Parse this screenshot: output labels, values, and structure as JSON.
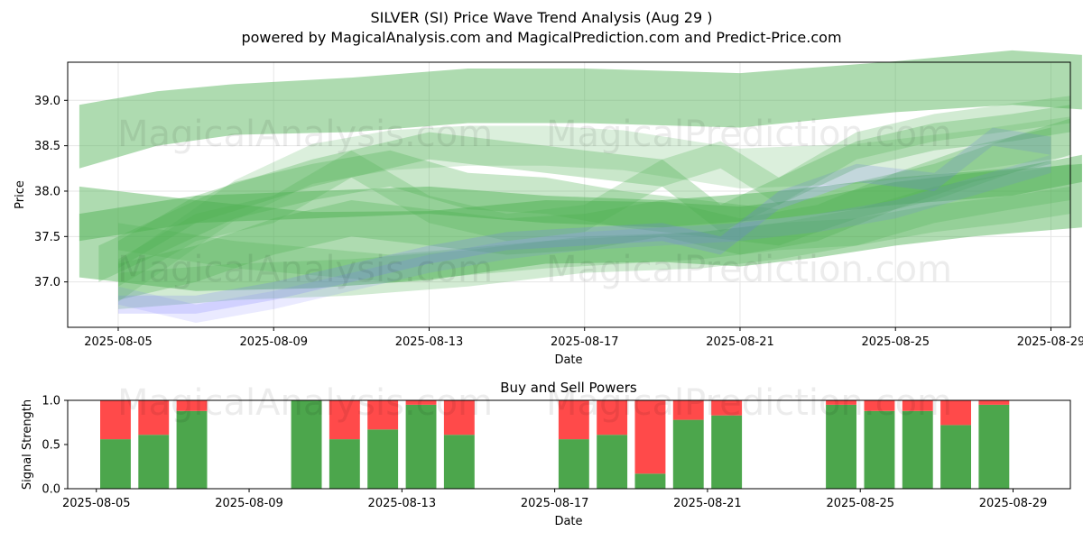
{
  "title_line1": "SILVER (SI) Price Wave Trend Analysis (Aug 29 )",
  "title_line2": "powered by MagicalAnalysis.com and MagicalPrediction.com and Predict-Price.com",
  "watermarks": [
    "MagicalAnalysis.com",
    "MagicalPrediction.com"
  ],
  "colors": {
    "green_band": "#4CAF50",
    "blue_band": "#6f6fff",
    "buy": "#4CA64C",
    "sell": "#FF4A4A",
    "grid": "#e6e6e6"
  },
  "chart_data": [
    {
      "type": "area",
      "title": "",
      "xlabel": "Date",
      "ylabel": "Price",
      "x_start": "2025-08-04",
      "xlim": [
        -0.3,
        25.5
      ],
      "ylim": [
        36.5,
        39.42
      ],
      "x_ticks": [
        {
          "day": 1,
          "label": "2025-08-05"
        },
        {
          "day": 5,
          "label": "2025-08-09"
        },
        {
          "day": 9,
          "label": "2025-08-13"
        },
        {
          "day": 13,
          "label": "2025-08-17"
        },
        {
          "day": 17,
          "label": "2025-08-21"
        },
        {
          "day": 21,
          "label": "2025-08-25"
        },
        {
          "day": 25,
          "label": "2025-08-29"
        }
      ],
      "y_ticks": [
        {
          "value": 37.0,
          "label": "37.0"
        },
        {
          "value": 37.5,
          "label": "37.5"
        },
        {
          "value": 38.0,
          "label": "38.0"
        },
        {
          "value": 38.5,
          "label": "38.5"
        },
        {
          "value": 39.0,
          "label": "39.0"
        }
      ],
      "grid": true,
      "bands": [
        {
          "color": "green",
          "opacity": 0.45,
          "x": [
            0,
            2,
            4,
            7,
            10,
            13,
            17,
            21,
            24,
            25.8
          ],
          "center": [
            38.6,
            38.8,
            38.9,
            38.95,
            39.05,
            39.05,
            39.0,
            39.15,
            39.25,
            39.2
          ],
          "half_width": [
            0.35,
            0.3,
            0.28,
            0.3,
            0.3,
            0.3,
            0.3,
            0.28,
            0.3,
            0.3
          ]
        },
        {
          "color": "green",
          "opacity": 0.45,
          "x": [
            0,
            3,
            6,
            9,
            12,
            15,
            17,
            19,
            21,
            23,
            25.8
          ],
          "center": [
            37.55,
            37.4,
            37.35,
            37.4,
            37.55,
            37.55,
            37.5,
            37.6,
            37.75,
            37.85,
            37.95
          ],
          "half_width": [
            0.5,
            0.5,
            0.42,
            0.38,
            0.35,
            0.33,
            0.33,
            0.33,
            0.35,
            0.35,
            0.35
          ]
        },
        {
          "color": "green",
          "opacity": 0.45,
          "x": [
            0,
            3,
            6,
            9,
            12,
            15,
            18,
            21,
            24,
            25.8
          ],
          "center": [
            37.6,
            37.8,
            37.85,
            37.9,
            37.8,
            37.75,
            37.85,
            38.0,
            38.1,
            38.25
          ],
          "half_width": [
            0.15,
            0.15,
            0.15,
            0.15,
            0.15,
            0.15,
            0.15,
            0.15,
            0.15,
            0.15
          ]
        },
        {
          "color": "green",
          "opacity": 0.3,
          "x": [
            0.5,
            2,
            4,
            6,
            8,
            10,
            12,
            14,
            16,
            18,
            20,
            22,
            24,
            25.5
          ],
          "center": [
            37.2,
            37.5,
            37.9,
            38.1,
            38.25,
            38.0,
            37.95,
            37.8,
            37.7,
            37.6,
            37.9,
            38.1,
            38.4,
            38.6
          ],
          "half_width": [
            0.2,
            0.2,
            0.2,
            0.2,
            0.2,
            0.2,
            0.2,
            0.2,
            0.2,
            0.2,
            0.2,
            0.2,
            0.2,
            0.2
          ]
        },
        {
          "color": "green",
          "opacity": 0.3,
          "x": [
            1,
            3,
            5,
            7,
            9,
            11,
            13,
            15,
            17,
            19,
            21,
            23,
            25
          ],
          "center": [
            37.0,
            37.2,
            37.5,
            37.7,
            37.6,
            37.5,
            37.55,
            37.7,
            37.5,
            37.65,
            38.0,
            38.3,
            38.5
          ],
          "half_width": [
            0.2,
            0.2,
            0.2,
            0.2,
            0.2,
            0.2,
            0.2,
            0.2,
            0.2,
            0.2,
            0.2,
            0.2,
            0.2
          ]
        },
        {
          "color": "green",
          "opacity": 0.3,
          "x": [
            1,
            3,
            6,
            9,
            11,
            13,
            15,
            16.5,
            18,
            20,
            22,
            24,
            25.5
          ],
          "center": [
            37.3,
            37.8,
            38.2,
            38.5,
            38.4,
            38.3,
            38.2,
            37.7,
            38.0,
            38.4,
            38.6,
            38.7,
            38.8
          ],
          "half_width": [
            0.15,
            0.15,
            0.15,
            0.15,
            0.15,
            0.15,
            0.15,
            0.15,
            0.15,
            0.15,
            0.15,
            0.15,
            0.15
          ]
        },
        {
          "color": "green",
          "opacity": 0.25,
          "x": [
            1,
            4,
            7,
            10,
            13,
            16,
            18,
            20,
            22,
            24,
            25.5
          ],
          "center": [
            36.9,
            37.0,
            37.05,
            37.15,
            37.3,
            37.35,
            37.45,
            37.6,
            37.85,
            38.0,
            38.1
          ],
          "half_width": [
            0.2,
            0.2,
            0.2,
            0.2,
            0.2,
            0.2,
            0.2,
            0.2,
            0.2,
            0.2,
            0.2
          ]
        },
        {
          "color": "green",
          "opacity": 0.25,
          "x": [
            1,
            3,
            5,
            7,
            9,
            11,
            13,
            15,
            16.5,
            18,
            20,
            22,
            25.5
          ],
          "center": [
            37.1,
            37.6,
            37.8,
            38.3,
            37.8,
            37.6,
            37.7,
            38.2,
            38.4,
            38.0,
            38.5,
            38.7,
            38.9
          ],
          "half_width": [
            0.15,
            0.15,
            0.15,
            0.15,
            0.15,
            0.15,
            0.15,
            0.15,
            0.15,
            0.15,
            0.15,
            0.15,
            0.15
          ]
        },
        {
          "color": "green",
          "opacity": 0.25,
          "x": [
            1,
            4,
            8,
            12,
            16,
            18,
            20,
            22,
            24,
            25.5
          ],
          "center": [
            37.5,
            37.3,
            37.15,
            37.3,
            37.4,
            37.5,
            37.55,
            37.7,
            37.8,
            37.9
          ],
          "half_width": [
            0.15,
            0.15,
            0.15,
            0.15,
            0.15,
            0.15,
            0.15,
            0.15,
            0.15,
            0.15
          ]
        },
        {
          "color": "blue",
          "opacity": 0.2,
          "x": [
            1,
            3,
            5,
            7,
            9,
            11,
            13,
            15,
            16.5,
            18,
            20,
            22,
            23.5,
            25
          ],
          "center": [
            36.75,
            36.75,
            36.9,
            37.1,
            37.3,
            37.45,
            37.5,
            37.55,
            37.4,
            37.9,
            38.2,
            38.1,
            38.6,
            38.5
          ],
          "half_width": [
            0.1,
            0.1,
            0.1,
            0.1,
            0.1,
            0.1,
            0.1,
            0.1,
            0.1,
            0.1,
            0.1,
            0.1,
            0.1,
            0.1
          ]
        },
        {
          "color": "blue",
          "opacity": 0.15,
          "x": [
            1,
            3,
            5,
            7,
            9,
            11,
            13,
            15,
            17,
            19,
            21,
            23,
            25
          ],
          "center": [
            36.85,
            36.65,
            36.8,
            37.0,
            37.2,
            37.35,
            37.45,
            37.5,
            37.55,
            37.65,
            37.8,
            38.05,
            38.3
          ],
          "half_width": [
            0.1,
            0.1,
            0.1,
            0.1,
            0.1,
            0.1,
            0.1,
            0.1,
            0.1,
            0.1,
            0.1,
            0.1,
            0.1
          ]
        },
        {
          "color": "green",
          "opacity": 0.2,
          "x": [
            1,
            2.5,
            4,
            6,
            8,
            10,
            12,
            14,
            17,
            20,
            23,
            25.5
          ],
          "center": [
            37.0,
            37.45,
            37.9,
            38.3,
            38.45,
            38.5,
            38.5,
            38.45,
            38.25,
            38.3,
            38.45,
            38.6
          ],
          "half_width": [
            0.22,
            0.22,
            0.22,
            0.22,
            0.22,
            0.22,
            0.22,
            0.22,
            0.22,
            0.22,
            0.22,
            0.22
          ]
        }
      ]
    },
    {
      "type": "bar",
      "title": "Buy and Sell Powers",
      "xlabel": "Date",
      "ylabel": "Signal Strength",
      "ylim": [
        0,
        1.0
      ],
      "y_ticks": [
        {
          "value": 0.0,
          "label": "0.0"
        },
        {
          "value": 0.5,
          "label": "0.5"
        },
        {
          "value": 1.0,
          "label": "1.0"
        }
      ],
      "x_ticks": [
        {
          "day": 0,
          "label": "2025-08-05"
        },
        {
          "day": 4,
          "label": "2025-08-09"
        },
        {
          "day": 8,
          "label": "2025-08-13"
        },
        {
          "day": 12,
          "label": "2025-08-17"
        },
        {
          "day": 16,
          "label": "2025-08-21"
        },
        {
          "day": 20,
          "label": "2025-08-25"
        },
        {
          "day": 24,
          "label": "2025-08-29"
        }
      ],
      "xlim": [
        -0.75,
        25.5
      ],
      "dates": [
        "2025-08-06",
        "2025-08-07",
        "2025-08-08",
        "2025-08-11",
        "2025-08-12",
        "2025-08-13",
        "2025-08-14",
        "2025-08-15",
        "2025-08-18",
        "2025-08-19",
        "2025-08-20",
        "2025-08-21",
        "2025-08-22",
        "2025-08-25",
        "2025-08-26",
        "2025-08-27",
        "2025-08-28",
        "2025-08-29"
      ],
      "day_index": [
        1,
        2,
        3,
        6,
        7,
        8,
        9,
        10,
        13,
        14,
        15,
        16,
        17,
        20,
        21,
        22,
        23,
        24
      ],
      "buy": [
        0.56,
        0.61,
        0.88,
        1.0,
        0.56,
        0.67,
        0.95,
        0.61,
        0.56,
        0.61,
        0.17,
        0.78,
        0.83,
        0.95,
        0.88,
        0.88,
        0.72,
        0.95
      ],
      "sell": [
        0.44,
        0.39,
        0.12,
        0.0,
        0.44,
        0.33,
        0.05,
        0.39,
        0.44,
        0.39,
        0.83,
        0.22,
        0.17,
        0.05,
        0.12,
        0.12,
        0.28,
        0.05
      ]
    }
  ]
}
